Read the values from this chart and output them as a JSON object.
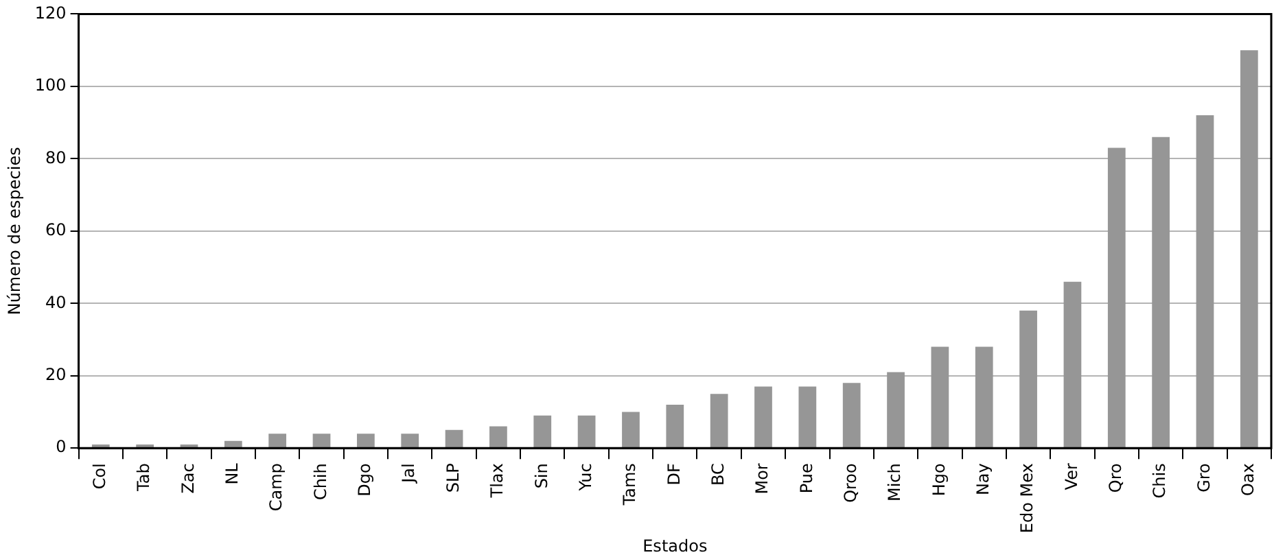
{
  "chart_data": {
    "type": "bar",
    "xlabel": "Estados",
    "ylabel": "Número de especies",
    "categories": [
      "Col",
      "Tab",
      "Zac",
      "NL",
      "Camp",
      "Chih",
      "Dgo",
      "Jal",
      "SLP",
      "Tlax",
      "Sin",
      "Yuc",
      "Tams",
      "DF",
      "BC",
      "Mor",
      "Pue",
      "Qroo",
      "Mich",
      "Hgo",
      "Nay",
      "Edo Mex",
      "Ver",
      "Qro",
      "Chis",
      "Gro",
      "Oax"
    ],
    "values": [
      1,
      1,
      1,
      2,
      4,
      4,
      4,
      4,
      5,
      6,
      9,
      9,
      10,
      12,
      15,
      17,
      17,
      18,
      21,
      28,
      28,
      38,
      46,
      83,
      86,
      92,
      110
    ],
    "color": "#969696",
    "ylim": [
      0,
      120
    ],
    "yticks": [
      0,
      20,
      40,
      60,
      80,
      100,
      120
    ],
    "grid": "y",
    "legend": false
  }
}
